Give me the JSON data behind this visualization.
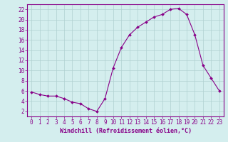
{
  "hours": [
    0,
    1,
    2,
    3,
    4,
    5,
    6,
    7,
    8,
    9,
    10,
    11,
    12,
    13,
    14,
    15,
    16,
    17,
    18,
    19,
    20,
    21,
    22,
    23
  ],
  "values": [
    5.8,
    5.3,
    5.0,
    5.0,
    4.5,
    3.8,
    3.5,
    2.5,
    2.0,
    4.5,
    10.5,
    14.5,
    17.0,
    18.5,
    19.5,
    20.5,
    21.0,
    22.0,
    22.2,
    21.0,
    17.0,
    11.0,
    8.5,
    6.0
  ],
  "line_color": "#880088",
  "marker_color": "#880088",
  "bg_color": "#d4eeee",
  "grid_color": "#b0d0d0",
  "axis_color": "#880088",
  "tick_color": "#880088",
  "xlabel": "Windchill (Refroidissement éolien,°C)",
  "ylim": [
    1,
    23
  ],
  "xlim": [
    -0.5,
    23.5
  ],
  "yticks": [
    2,
    4,
    6,
    8,
    10,
    12,
    14,
    16,
    18,
    20,
    22
  ],
  "xticks": [
    0,
    1,
    2,
    3,
    4,
    5,
    6,
    7,
    8,
    9,
    10,
    11,
    12,
    13,
    14,
    15,
    16,
    17,
    18,
    19,
    20,
    21,
    22,
    23
  ],
  "xlabel_fontsize": 6.0,
  "tick_fontsize": 5.5
}
